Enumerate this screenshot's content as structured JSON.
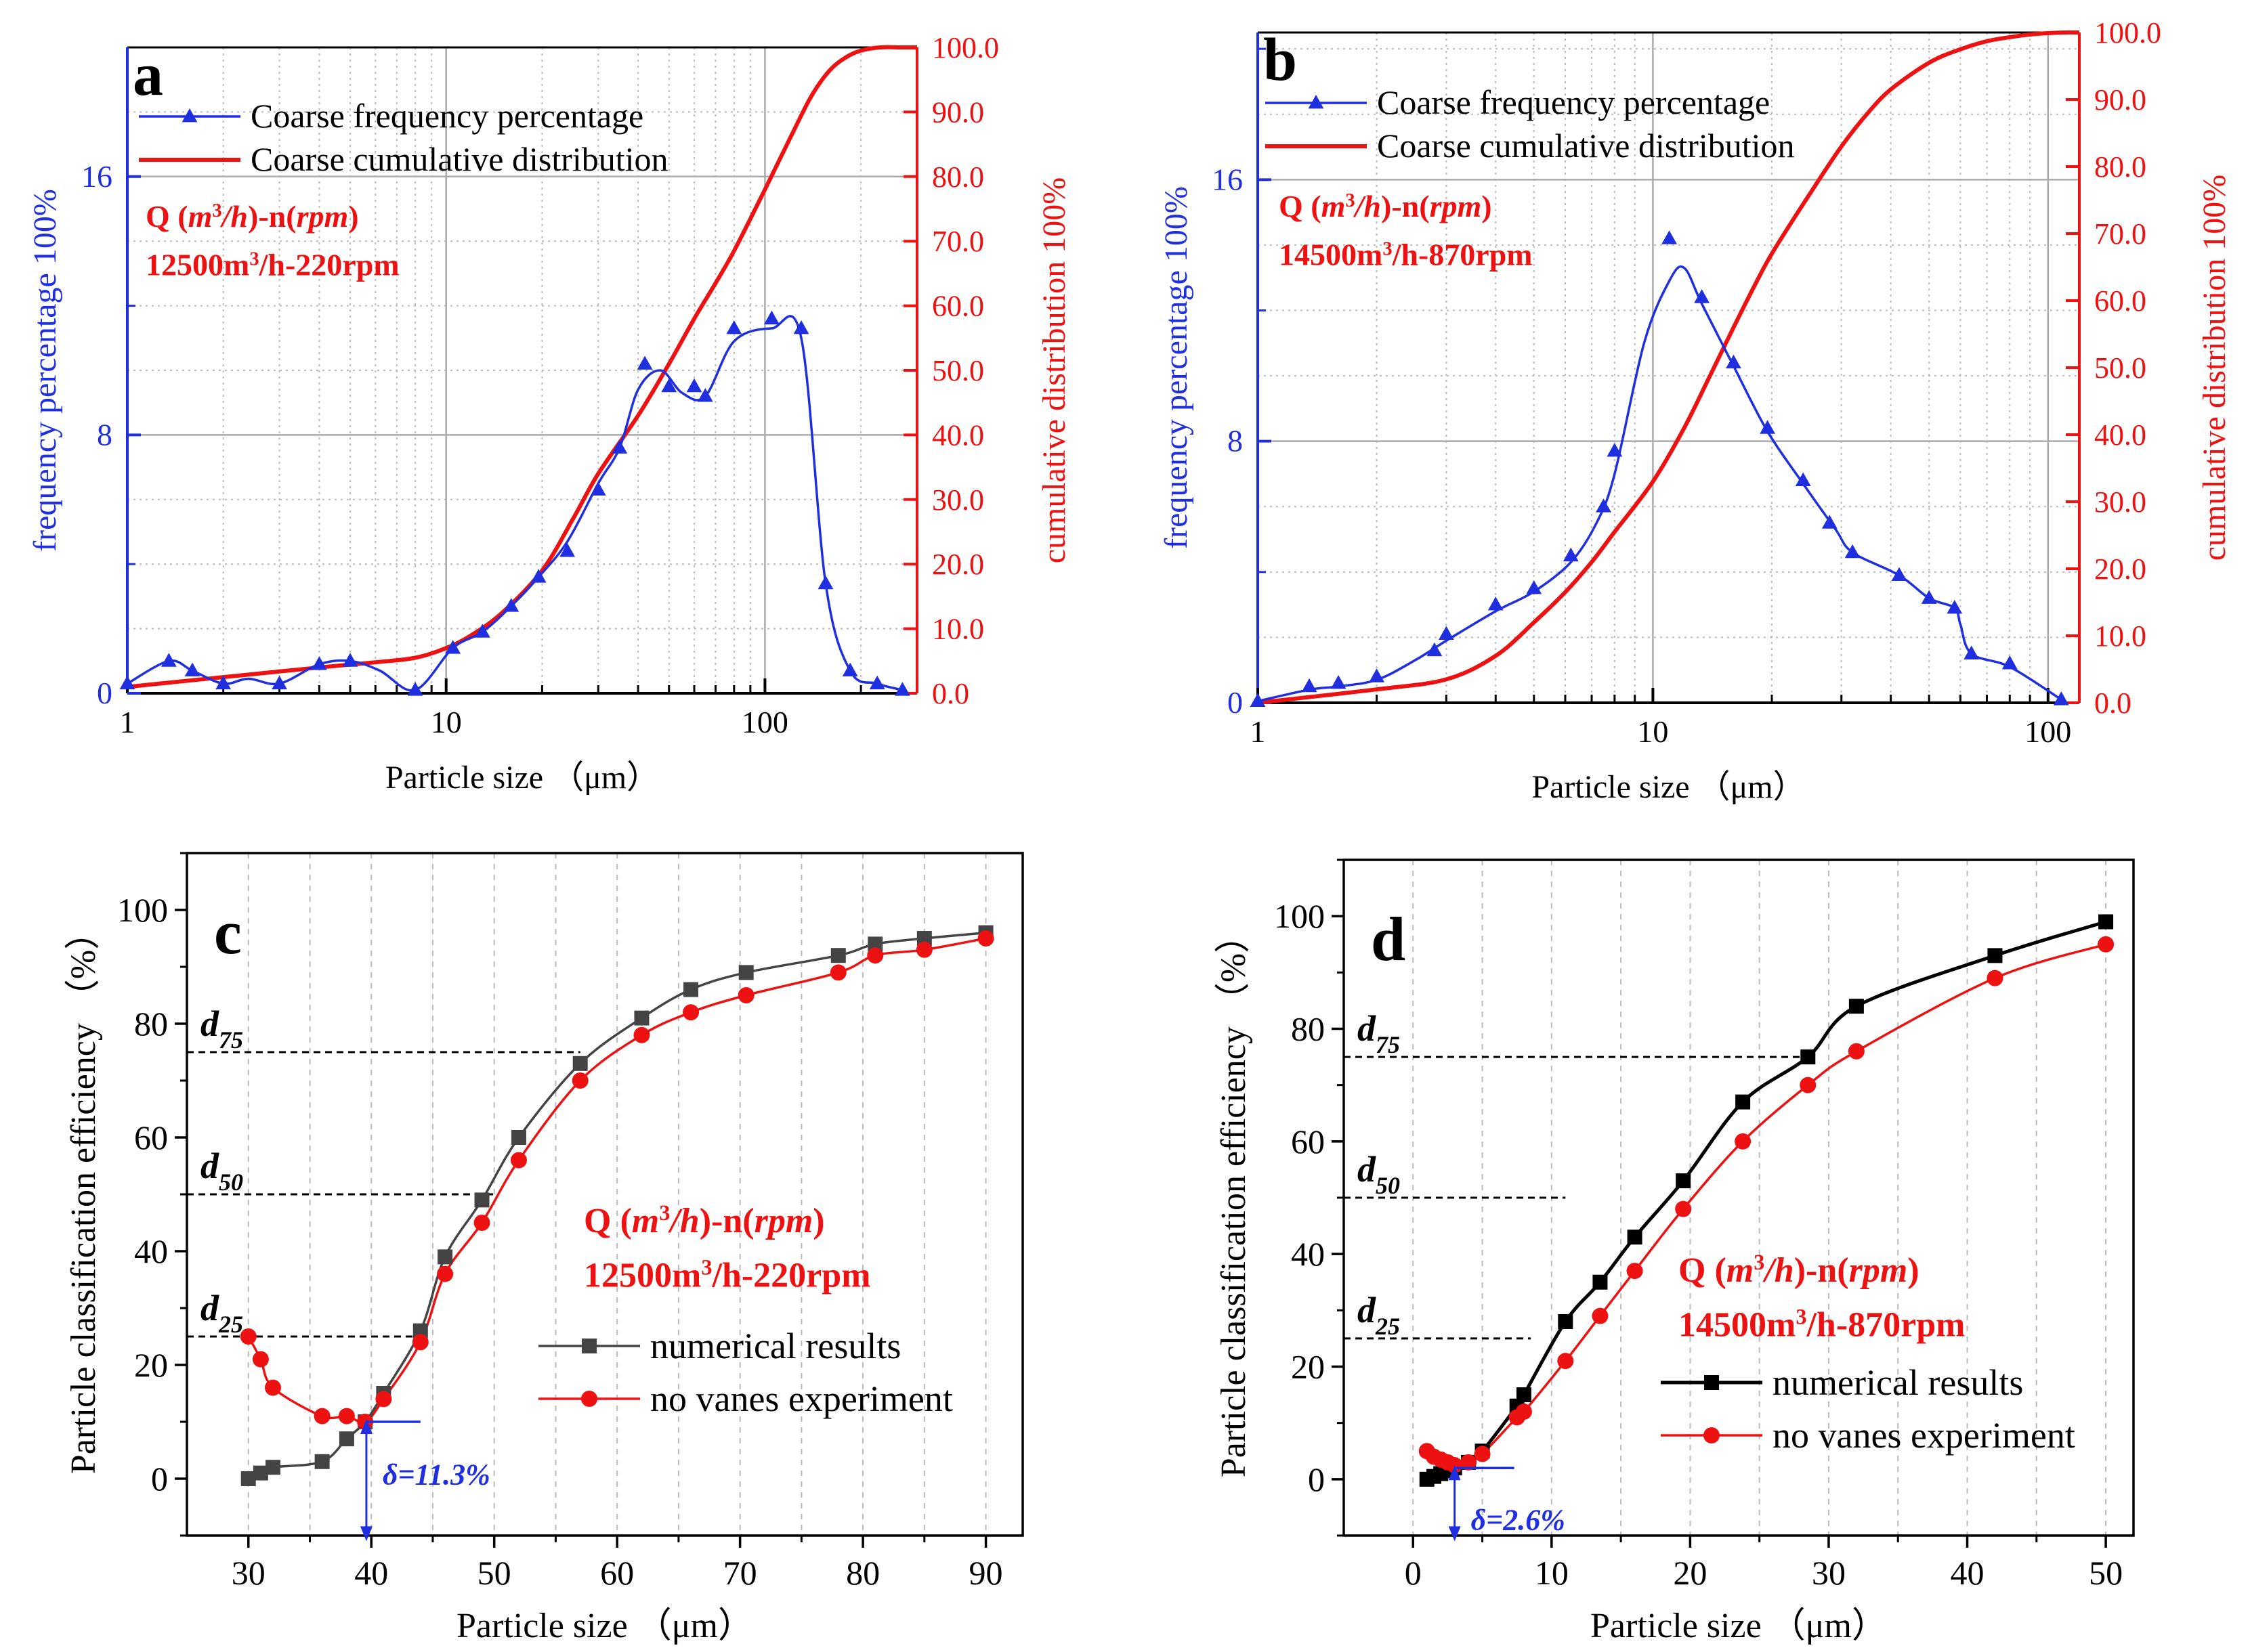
{
  "colors": {
    "blue": "#1f2fe0",
    "red": "#ee1111",
    "dark": "#444444",
    "black": "#000000",
    "grid": "#aaaaaa"
  },
  "chart_data": [
    {
      "id": "a",
      "type": "line",
      "panel_label": "a",
      "xlabel": "Particle size （μm）",
      "ylabel_left": "frequency percentage 100%",
      "ylabel_right": "cumulative distribution 100%",
      "xscale": "log",
      "xlim": [
        1,
        300
      ],
      "x_ticks": [
        1,
        10,
        100
      ],
      "x_tick_labels": [
        "1",
        "10",
        "100"
      ],
      "ylim_left": [
        0,
        20
      ],
      "y_ticks_left": [
        0,
        8,
        16
      ],
      "y_tick_labels_left": [
        "0",
        "8",
        "16"
      ],
      "ylim_right": [
        0,
        100
      ],
      "y_ticks_right": [
        0,
        10,
        20,
        30,
        40,
        50,
        60,
        70,
        80,
        90,
        100
      ],
      "y_tick_labels_right": [
        "0.0",
        "10.0",
        "20.0",
        "30.0",
        "40.0",
        "50.0",
        "60.0",
        "70.0",
        "80.0",
        "90.0",
        "100.0"
      ],
      "legend": [
        {
          "label": "Coarse frequency percentage",
          "color": "#1f2fe0",
          "marker": "triangle"
        },
        {
          "label": "Coarse cumulative distribution",
          "color": "#ee1111",
          "marker": "none"
        }
      ],
      "legend_position": "top-left",
      "annotation_line1_parts": [
        "Q (",
        "m",
        "3",
        "/h",
        ")-n(",
        "rpm",
        ")"
      ],
      "annotation_line2_parts": [
        "12500m",
        "3",
        "/h-220rpm"
      ],
      "series": [
        {
          "name": "Coarse frequency percentage",
          "axis": "left",
          "color": "#1f2fe0",
          "marker": "triangle",
          "x": [
            1.0,
            1.35,
            1.6,
            2.0,
            2.4,
            3.0,
            4.0,
            5.0,
            6.2,
            8.0,
            10.5,
            13.0,
            16.0,
            19.5,
            24.0,
            30.0,
            35.0,
            40.0,
            47.0,
            55.0,
            65.0,
            80.0,
            105.0,
            130.0,
            155.0,
            185.0,
            225.0,
            270.0
          ],
          "y": [
            0.3,
            1.0,
            0.7,
            0.3,
            0.45,
            0.3,
            0.9,
            1.0,
            0.7,
            0.1,
            1.4,
            1.9,
            2.7,
            3.6,
            4.7,
            6.5,
            7.6,
            9.4,
            10.0,
            9.3,
            9.2,
            10.9,
            11.3,
            11.0,
            3.4,
            0.7,
            0.3,
            0.1
          ],
          "marker_x": [
            1.0,
            1.35,
            1.6,
            2.0,
            3.0,
            4.0,
            5.0,
            8.0,
            10.5,
            13.0,
            16.0,
            19.5,
            24.0,
            30.0,
            35.0,
            42.0,
            50.0,
            60.0,
            65.0,
            80.0,
            105.0,
            130.0,
            155.0,
            185.0,
            225.0,
            270.0
          ],
          "marker_y": [
            0.3,
            1.0,
            0.7,
            0.3,
            0.3,
            0.9,
            1.0,
            0.1,
            1.4,
            1.9,
            2.7,
            3.6,
            4.4,
            6.3,
            7.6,
            10.2,
            9.5,
            9.5,
            9.2,
            11.3,
            11.6,
            11.3,
            3.4,
            0.7,
            0.3,
            0.1
          ]
        },
        {
          "name": "Coarse cumulative distribution",
          "axis": "right",
          "color": "#ee1111",
          "x": [
            1.0,
            2.0,
            4.0,
            6.0,
            8.0,
            10.0,
            12.0,
            15.0,
            20.0,
            25.0,
            30.0,
            40.0,
            50.0,
            60.0,
            70.0,
            80.0,
            100.0,
            120.0,
            140.0,
            160.0,
            180.0,
            200.0,
            230.0,
            270.0,
            300.0
          ],
          "y": [
            1.0,
            2.5,
            4.0,
            4.8,
            5.5,
            7.0,
            9.0,
            12.5,
            19.0,
            27.0,
            34.0,
            43.0,
            51.0,
            58.0,
            63.5,
            68.5,
            78.0,
            86.0,
            92.5,
            96.5,
            98.5,
            99.5,
            100.0,
            100.0,
            100.0
          ]
        }
      ]
    },
    {
      "id": "b",
      "type": "line",
      "panel_label": "b",
      "xlabel": "Particle size （μm）",
      "ylabel_left": "frequency percentage 100%",
      "ylabel_right": "cumulative distribution 100%",
      "xscale": "log",
      "xlim": [
        1,
        120
      ],
      "x_ticks": [
        1,
        10,
        100
      ],
      "x_tick_labels": [
        "1",
        "10",
        "100"
      ],
      "ylim_left": [
        0,
        20.5
      ],
      "y_ticks_left": [
        0,
        8,
        16
      ],
      "y_tick_labels_left": [
        "0",
        "8",
        "16"
      ],
      "ylim_right": [
        0,
        100
      ],
      "y_ticks_right": [
        0,
        10,
        20,
        30,
        40,
        50,
        60,
        70,
        80,
        90,
        100
      ],
      "y_tick_labels_right": [
        "0.0",
        "10.0",
        "20.0",
        "30.0",
        "40.0",
        "50.0",
        "60.0",
        "70.0",
        "80.0",
        "90.0",
        "100.0"
      ],
      "legend": [
        {
          "label": "Coarse frequency percentage",
          "color": "#1f2fe0",
          "marker": "triangle"
        },
        {
          "label": "Coarse cumulative distribution",
          "color": "#ee1111",
          "marker": "none"
        }
      ],
      "legend_position": "top-left",
      "annotation_line1_parts": [
        "Q (",
        "m",
        "3",
        "/h",
        ")-n(",
        "rpm",
        ")"
      ],
      "annotation_line2_parts": [
        "14500m",
        "3",
        "/h-870rpm"
      ],
      "series": [
        {
          "name": "Coarse frequency percentage",
          "axis": "left",
          "color": "#1f2fe0",
          "marker": "triangle",
          "x": [
            1.0,
            1.35,
            1.6,
            2.0,
            2.5,
            3.0,
            4.0,
            5.0,
            6.2,
            7.2,
            8.0,
            9.5,
            11.0,
            12.0,
            13.3,
            16.0,
            19.5,
            24.0,
            29.0,
            32.0,
            42.0,
            50.0,
            58.0,
            60.0,
            64.0,
            80.0,
            108.0
          ],
          "y": [
            0.05,
            0.4,
            0.5,
            0.7,
            1.3,
            1.9,
            2.8,
            3.4,
            4.3,
            5.5,
            7.0,
            11.0,
            12.9,
            13.3,
            12.2,
            10.3,
            8.3,
            6.7,
            5.3,
            4.6,
            3.9,
            3.2,
            2.9,
            2.4,
            1.5,
            1.1,
            0.1
          ],
          "marker_x": [
            1.0,
            1.35,
            1.6,
            2.0,
            2.8,
            3.0,
            4.0,
            5.0,
            6.2,
            7.5,
            8.0,
            11.0,
            13.3,
            16.0,
            19.5,
            24.0,
            28.0,
            32.0,
            42.0,
            50.0,
            58.0,
            64.0,
            80.0,
            108.0
          ],
          "marker_y": [
            0.05,
            0.5,
            0.6,
            0.8,
            1.6,
            2.1,
            3.0,
            3.5,
            4.5,
            6.0,
            7.7,
            14.2,
            12.4,
            10.4,
            8.4,
            6.8,
            5.5,
            4.6,
            3.9,
            3.2,
            2.9,
            1.5,
            1.2,
            0.1
          ]
        },
        {
          "name": "Coarse cumulative distribution",
          "axis": "right",
          "color": "#ee1111",
          "x": [
            1.0,
            2.0,
            3.0,
            4.0,
            5.0,
            6.0,
            7.0,
            8.0,
            10.0,
            12.0,
            14.0,
            16.0,
            18.0,
            20.0,
            25.0,
            30.0,
            35.0,
            40.0,
            50.0,
            60.0,
            70.0,
            80.0,
            90.0,
            100.0,
            110.0,
            120.0
          ],
          "y": [
            0.0,
            2.0,
            3.5,
            7.0,
            12.0,
            16.5,
            21.0,
            25.5,
            33.0,
            41.0,
            49.0,
            56.0,
            62.0,
            67.0,
            76.0,
            83.0,
            88.0,
            91.5,
            95.5,
            97.5,
            98.7,
            99.3,
            99.7,
            99.9,
            100.0,
            100.0
          ]
        }
      ]
    },
    {
      "id": "c",
      "type": "line",
      "panel_label": "c",
      "xlabel": "Particle size （μm）",
      "ylabel": "Particle classification efficiency （%）",
      "xlim": [
        25,
        93
      ],
      "x_ticks": [
        30,
        40,
        50,
        60,
        70,
        80,
        90
      ],
      "x_tick_labels": [
        "30",
        "40",
        "50",
        "60",
        "70",
        "80",
        "90"
      ],
      "ylim": [
        -10,
        110
      ],
      "y_ticks": [
        0,
        20,
        40,
        60,
        80,
        100
      ],
      "y_tick_labels": [
        "0",
        "20",
        "40",
        "60",
        "80",
        "100"
      ],
      "grid": "vertical dashed",
      "legend": [
        {
          "label": "numerical results",
          "color": "#444444",
          "marker": "square"
        },
        {
          "label": "no vanes experiment",
          "color": "#ee1111",
          "marker": "circle"
        }
      ],
      "legend_position": "lower-right",
      "annotation_line1_parts": [
        "Q (",
        "m",
        "3",
        "/h",
        ")-n(",
        "rpm",
        ")"
      ],
      "annotation_line2_parts": [
        "12500m",
        "3",
        "/h-220rpm"
      ],
      "d_lines": [
        {
          "label": "d",
          "sub": "75",
          "y": 75,
          "x_end": 57
        },
        {
          "label": "d",
          "sub": "50",
          "y": 50,
          "x_end": 50
        },
        {
          "label": "d",
          "sub": "25",
          "y": 25,
          "x_end": 44
        }
      ],
      "delta": {
        "label": "δ=11.3%",
        "x": 39.6,
        "y": 10,
        "y_to": -11,
        "x_h_end": 44
      },
      "series": [
        {
          "name": "numerical results",
          "color": "#444444",
          "marker": "square",
          "x": [
            30,
            31,
            32,
            36,
            38,
            39.5,
            41,
            44,
            46,
            49,
            52,
            57,
            62,
            66,
            70.5,
            78,
            81,
            85,
            90
          ],
          "y": [
            0,
            1,
            2,
            3,
            7,
            10,
            15,
            26,
            39,
            49,
            60,
            73,
            81,
            86,
            89,
            92,
            94,
            95,
            96
          ]
        },
        {
          "name": "no vanes experiment",
          "color": "#ee1111",
          "marker": "circle",
          "x": [
            30,
            31,
            32,
            36,
            38,
            39.5,
            41,
            44,
            46,
            49,
            52,
            57,
            62,
            66,
            70.5,
            78,
            81,
            85,
            90
          ],
          "y": [
            25,
            21,
            16,
            11,
            11,
            10,
            14,
            24,
            36,
            45,
            56,
            70,
            78,
            82,
            85,
            89,
            92,
            93,
            95
          ]
        }
      ]
    },
    {
      "id": "d",
      "type": "line",
      "panel_label": "d",
      "xlabel": "Particle size （μm）",
      "ylabel": "Particle classification efficiency （%）",
      "xlim": [
        -5,
        52
      ],
      "x_ticks": [
        0,
        10,
        20,
        30,
        40,
        50
      ],
      "x_tick_labels": [
        "0",
        "10",
        "20",
        "30",
        "40",
        "50"
      ],
      "ylim": [
        -10,
        110
      ],
      "y_ticks": [
        0,
        20,
        40,
        60,
        80,
        100
      ],
      "y_tick_labels": [
        "0",
        "20",
        "40",
        "60",
        "80",
        "100"
      ],
      "grid": "vertical dashed",
      "legend": [
        {
          "label": "numerical results",
          "color": "#000000",
          "marker": "square"
        },
        {
          "label": "no vanes experiment",
          "color": "#ee1111",
          "marker": "circle"
        }
      ],
      "legend_position": "lower-right",
      "annotation_line1_parts": [
        "Q (",
        "m",
        "3",
        "/h",
        ")-n(",
        "rpm",
        ")"
      ],
      "annotation_line2_parts": [
        "14500m",
        "3",
        "/h-870rpm"
      ],
      "d_lines": [
        {
          "label": "d",
          "sub": "75",
          "y": 75,
          "x_end": 28.5
        },
        {
          "label": "d",
          "sub": "50",
          "y": 50,
          "x_end": 11
        },
        {
          "label": "d",
          "sub": "25",
          "y": 25,
          "x_end": 8.5
        }
      ],
      "delta": {
        "label": "δ=2.6%",
        "x": 3.0,
        "y": 2,
        "y_to": -11,
        "x_h_end": 7.3
      },
      "series": [
        {
          "name": "numerical results",
          "color": "#000000",
          "marker": "square",
          "x": [
            1.0,
            1.5,
            2.0,
            2.5,
            3.0,
            4.0,
            5.0,
            7.5,
            8.0,
            11.0,
            13.5,
            16.0,
            19.5,
            23.8,
            28.5,
            32.0,
            42.0,
            50.0
          ],
          "y": [
            0,
            0.5,
            1,
            1.5,
            2,
            3,
            5,
            13,
            15,
            28,
            35,
            43,
            53,
            67,
            75,
            84,
            93,
            99
          ]
        },
        {
          "name": "no vanes experiment",
          "color": "#ee1111",
          "marker": "circle",
          "x": [
            1.0,
            1.5,
            2.0,
            2.5,
            3.0,
            4.0,
            5.0,
            7.5,
            8.0,
            11.0,
            13.5,
            16.0,
            19.5,
            23.8,
            28.5,
            32.0,
            42.0,
            50.0
          ],
          "y": [
            5,
            4,
            3.5,
            3,
            2.5,
            3,
            4.5,
            11,
            12,
            21,
            29,
            37,
            48,
            60,
            70,
            76,
            89,
            95
          ]
        }
      ]
    }
  ]
}
